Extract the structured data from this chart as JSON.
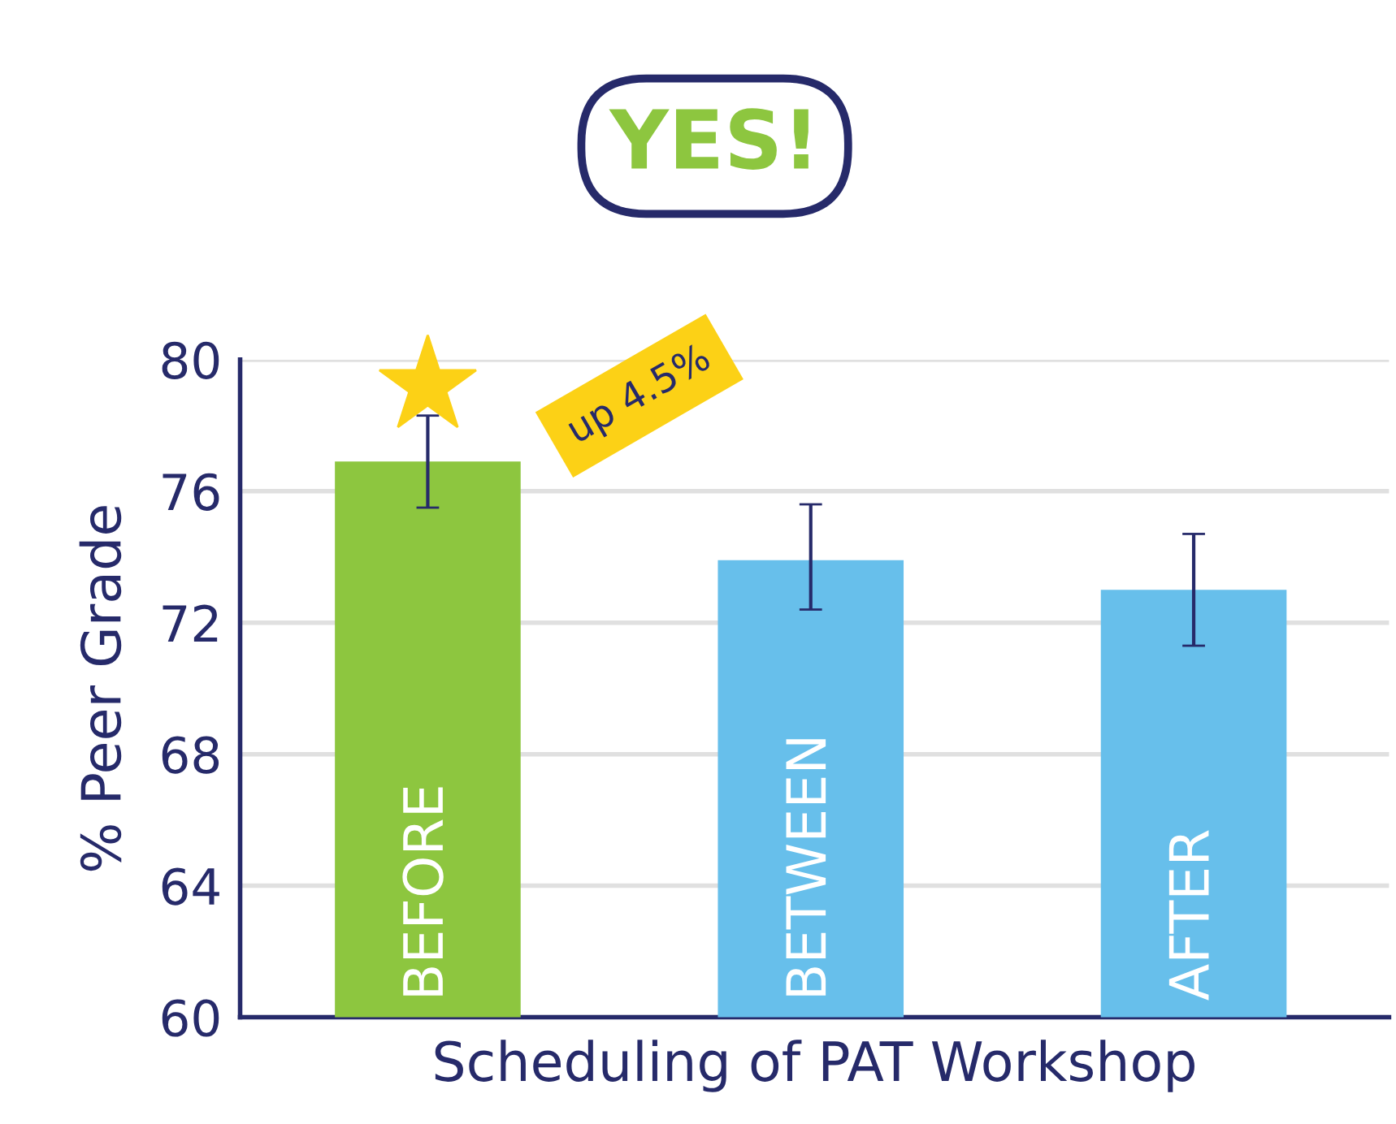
{
  "chart_data": {
    "type": "bar",
    "title": "YES!",
    "ylabel": "% Peer Grade",
    "xlabel": "Scheduling of PAT Workshop",
    "categories": [
      "BEFORE",
      "BETWEEN",
      "AFTER"
    ],
    "values": [
      76.9,
      73.9,
      73.0
    ],
    "colors": [
      "#8dc63f",
      "#67bfeb",
      "#67bfeb"
    ],
    "errors": [
      [
        75.5,
        78.3
      ],
      [
        72.4,
        75.6
      ],
      [
        71.3,
        74.7
      ]
    ],
    "annotations": [
      "up 4.5%"
    ],
    "ylim": [
      60,
      80
    ],
    "yticks": [
      60,
      64,
      68,
      72,
      76,
      80
    ],
    "grid": "y"
  }
}
